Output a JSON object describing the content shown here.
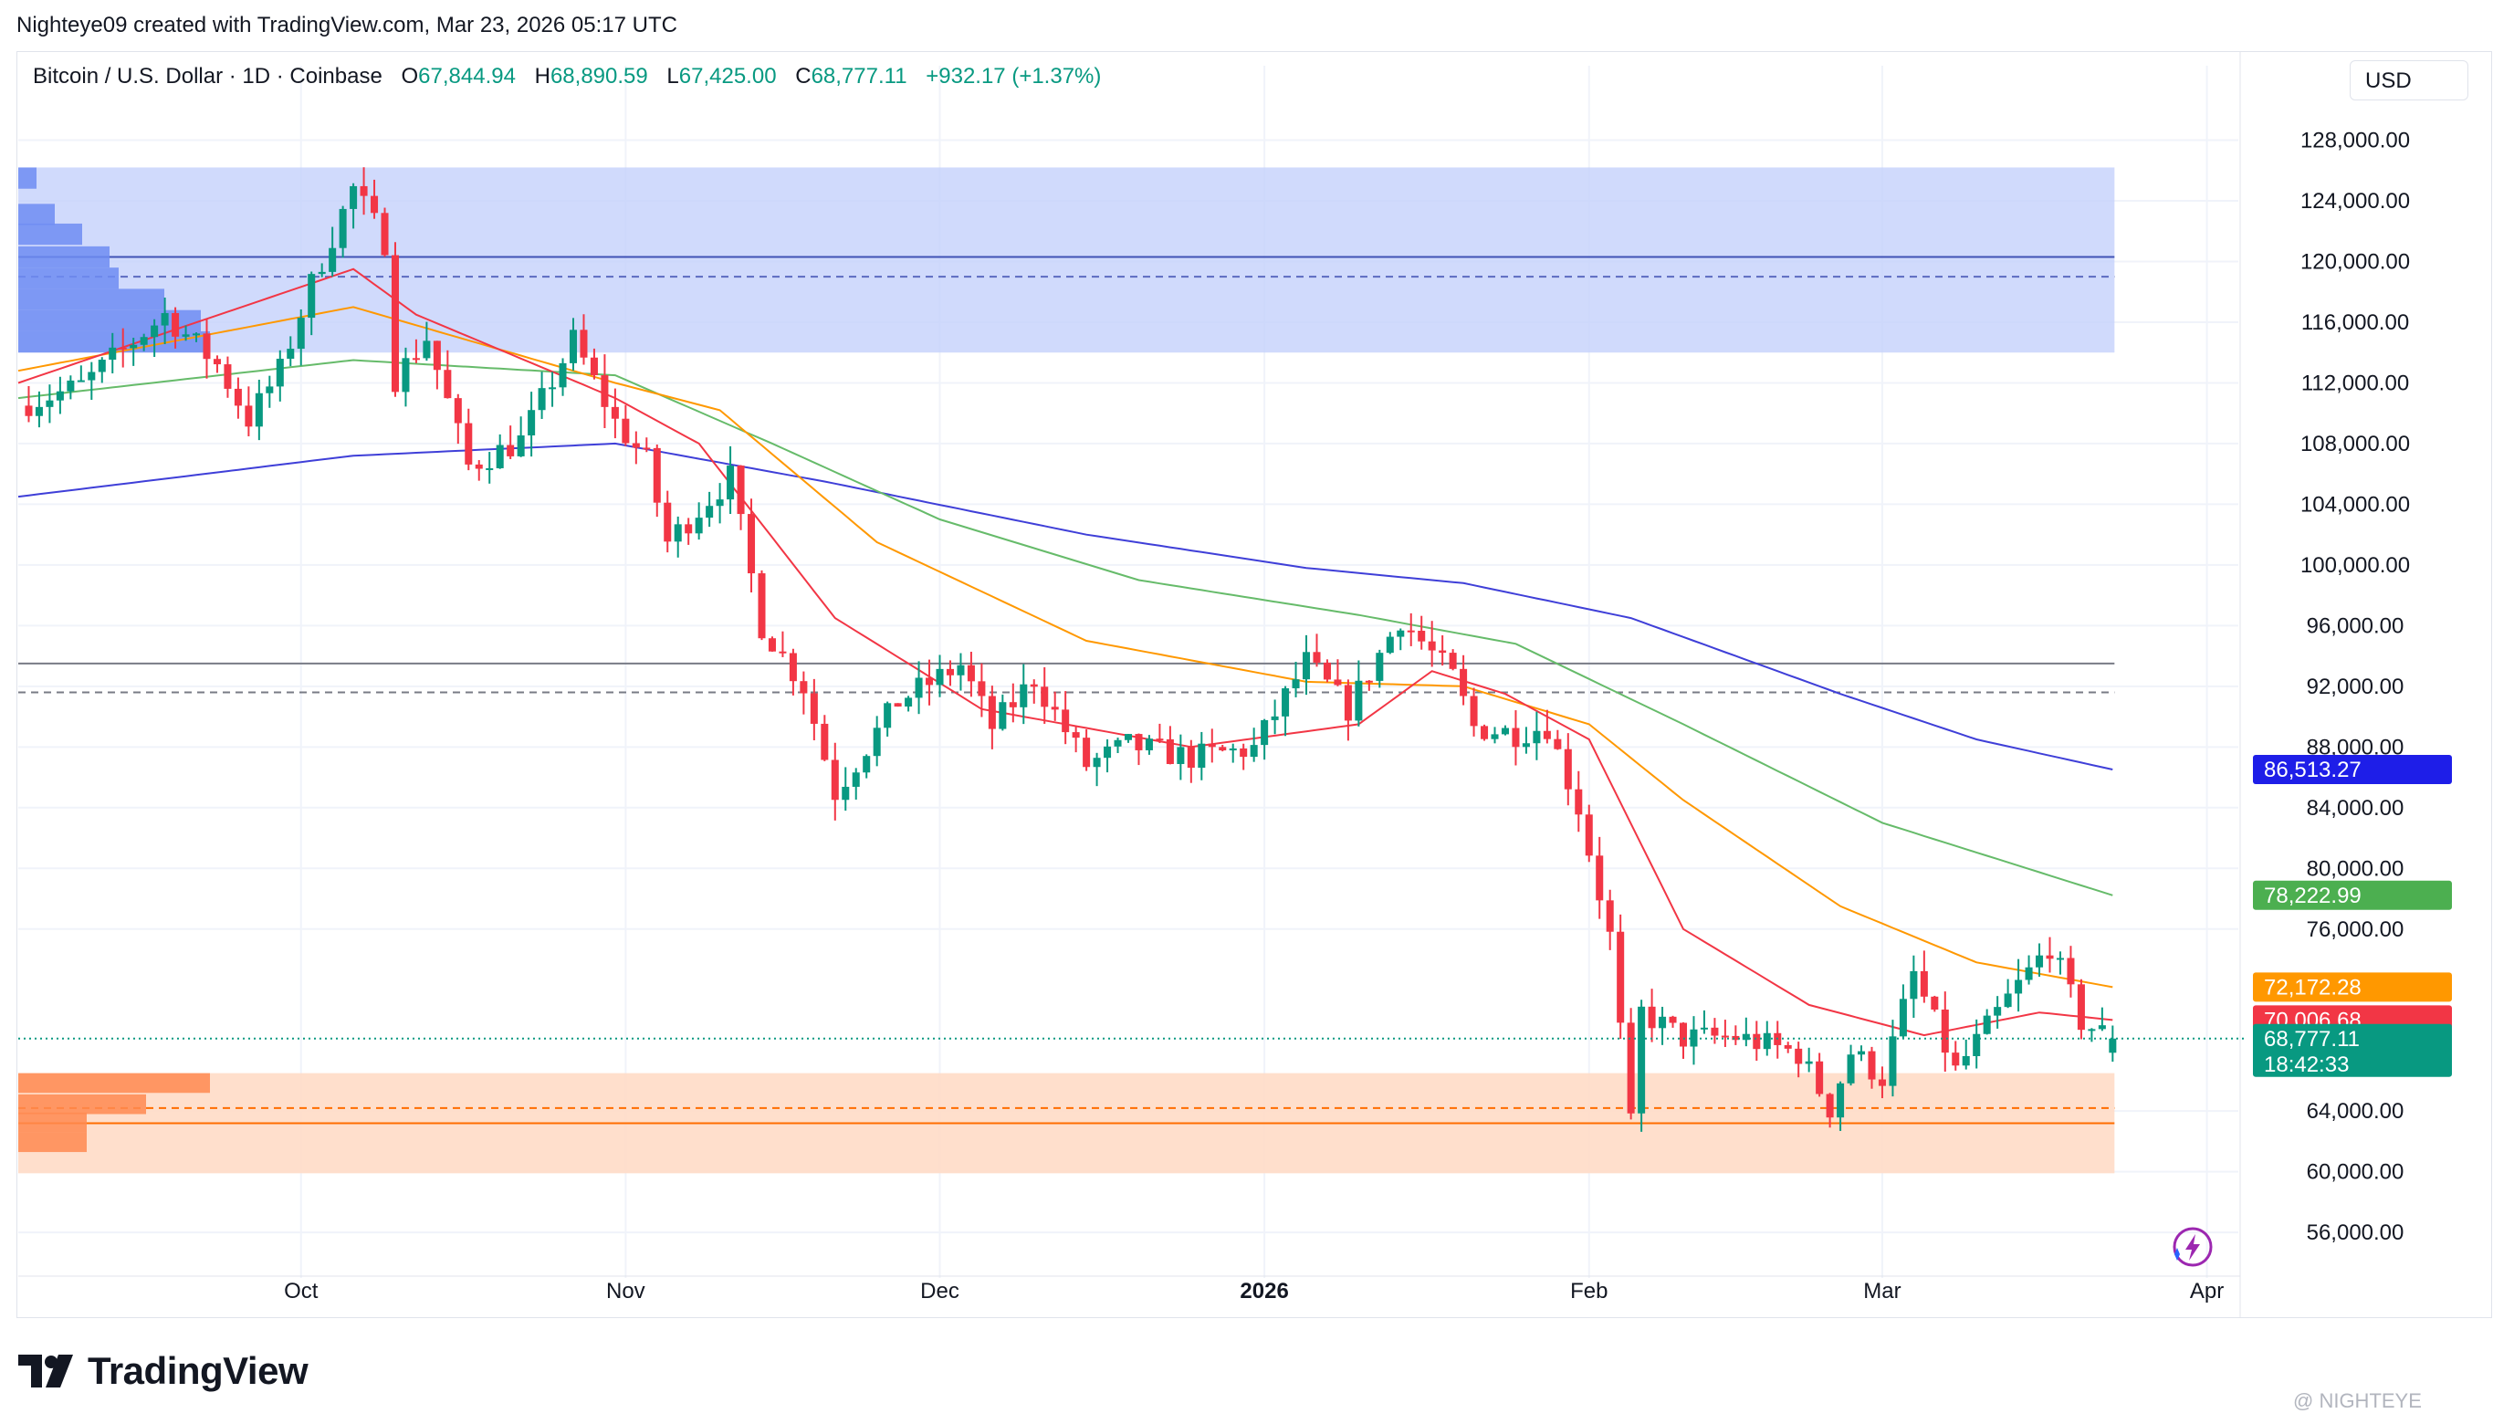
{
  "header": {
    "author": "Nighteye09",
    "created_text": "created with TradingView.com,",
    "date": "Mar 23, 2026 05:17 UTC"
  },
  "legend": {
    "symbol": "Bitcoin / U.S. Dollar · 1D · Coinbase",
    "open_label": "O",
    "open": "67,844.94",
    "high_label": "H",
    "high": "68,890.59",
    "low_label": "L",
    "low": "67,425.00",
    "close_label": "C",
    "close": "68,777.11",
    "change": "+932.17 (+1.37%)"
  },
  "currency_button": "USD",
  "brand": {
    "name": "TradingView"
  },
  "watermark": "@ NIGHTEYE",
  "colors": {
    "up": "#089981",
    "down": "#f23645",
    "ma_red": "#f23645",
    "ma_orange": "#ff9800",
    "ma_green": "#66bb6a",
    "ma_blue": "#3f3fd8",
    "upper_zone": "#c3d0fb",
    "lower_zone": "#ffdcc7"
  },
  "chart_data": {
    "type": "candlestick",
    "y_axis": {
      "ticks": [
        "128,000.00",
        "124,000.00",
        "120,000.00",
        "116,000.00",
        "112,000.00",
        "108,000.00",
        "104,000.00",
        "100,000.00",
        "96,000.00",
        "92,000.00",
        "88,000.00",
        "84,000.00",
        "80,000.00",
        "76,000.00",
        "64,000.00",
        "60,000.00",
        "56,000.00"
      ],
      "tick_values": [
        128000,
        124000,
        120000,
        116000,
        112000,
        108000,
        104000,
        100000,
        96000,
        92000,
        88000,
        84000,
        80000,
        76000,
        64000,
        60000,
        56000
      ],
      "range": [
        53000,
        130500
      ]
    },
    "x_axis": {
      "ticks": [
        "Oct",
        "Nov",
        "Dec",
        "2026",
        "Feb",
        "Mar",
        "Apr"
      ],
      "tick_dates": [
        "2025-10-01",
        "2025-11-01",
        "2025-12-01",
        "2026-01-01",
        "2026-02-01",
        "2026-03-01",
        "2026-04-01"
      ],
      "range": [
        "2025-09-04",
        "2026-04-04"
      ]
    },
    "price_labels": [
      {
        "text": "86,513.27",
        "value": 86513.27,
        "color": "#1e1ee8",
        "series": "ma_blue"
      },
      {
        "text": "78,222.99",
        "value": 78222.99,
        "color": "#4caf50",
        "series": "ma_green"
      },
      {
        "text": "72,172.28",
        "value": 72172.28,
        "color": "#ff9800",
        "series": "ma_orange"
      },
      {
        "text": "70,006.68",
        "value": 70006.68,
        "color": "#f23645",
        "series": "ma_red"
      },
      {
        "text": "68,777.11",
        "value": 68777.11,
        "color": "#089981",
        "series": "last"
      }
    ],
    "countdown": "18:42:33",
    "zones": [
      {
        "from": 114000,
        "to": 126200,
        "mid": 119000,
        "line": 120300,
        "color": "#c3d0fb"
      },
      {
        "from": 59900,
        "to": 66500,
        "mid": 64200,
        "line": 63200,
        "color": "#ffdcc7"
      }
    ],
    "level_lines": [
      {
        "solid": 93500,
        "dashed": 91600
      }
    ],
    "last_price": 68777.11,
    "keypoints": [
      [
        "2025-09-04",
        110500
      ],
      [
        "2025-09-10",
        111800
      ],
      [
        "2025-09-18",
        116500
      ],
      [
        "2025-09-23",
        113200
      ],
      [
        "2025-09-26",
        109600
      ],
      [
        "2025-09-29",
        112800
      ],
      [
        "2025-10-02",
        118500
      ],
      [
        "2025-10-06",
        124800
      ],
      [
        "2025-10-09",
        121300
      ],
      [
        "2025-10-10",
        112300
      ],
      [
        "2025-10-13",
        115000
      ],
      [
        "2025-10-17",
        106500
      ],
      [
        "2025-10-22",
        108200
      ],
      [
        "2025-10-27",
        114800
      ],
      [
        "2025-10-31",
        109400
      ],
      [
        "2025-11-03",
        106900
      ],
      [
        "2025-11-05",
        101500
      ],
      [
        "2025-11-11",
        105800
      ],
      [
        "2025-11-14",
        96000
      ],
      [
        "2025-11-18",
        92000
      ],
      [
        "2025-11-21",
        85000
      ],
      [
        "2025-11-24",
        88000
      ],
      [
        "2025-11-27",
        91000
      ],
      [
        "2025-12-03",
        93400
      ],
      [
        "2025-12-06",
        89300
      ],
      [
        "2025-12-10",
        92500
      ],
      [
        "2025-12-15",
        86800
      ],
      [
        "2025-12-19",
        88100
      ],
      [
        "2025-12-25",
        87300
      ],
      [
        "2025-12-31",
        87900
      ],
      [
        "2026-01-05",
        93600
      ],
      [
        "2026-01-09",
        90500
      ],
      [
        "2026-01-14",
        96500
      ],
      [
        "2026-01-19",
        92600
      ],
      [
        "2026-01-21",
        89300
      ],
      [
        "2026-01-25",
        88900
      ],
      [
        "2026-01-28",
        89400
      ],
      [
        "2026-01-31",
        84000
      ],
      [
        "2026-02-03",
        75500
      ],
      [
        "2026-02-05",
        63000
      ],
      [
        "2026-02-06",
        70500
      ],
      [
        "2026-02-10",
        68800
      ],
      [
        "2026-02-15",
        68900
      ],
      [
        "2026-02-21",
        67800
      ],
      [
        "2026-02-24",
        64200
      ],
      [
        "2026-02-26",
        67900
      ],
      [
        "2026-03-01",
        66200
      ],
      [
        "2026-03-04",
        73000
      ],
      [
        "2026-03-08",
        66600
      ],
      [
        "2026-03-13",
        71400
      ],
      [
        "2026-03-17",
        74900
      ],
      [
        "2026-03-20",
        69900
      ],
      [
        "2026-03-23",
        68777
      ]
    ],
    "ma_red_points": [
      [
        "2025-09-04",
        112000
      ],
      [
        "2025-10-06",
        119500
      ],
      [
        "2025-10-12",
        116500
      ],
      [
        "2025-10-31",
        111000
      ],
      [
        "2025-11-08",
        108000
      ],
      [
        "2025-11-21",
        96500
      ],
      [
        "2025-12-05",
        90500
      ],
      [
        "2025-12-25",
        88000
      ],
      [
        "2026-01-10",
        89500
      ],
      [
        "2026-01-17",
        93000
      ],
      [
        "2026-01-24",
        91500
      ],
      [
        "2026-02-01",
        88500
      ],
      [
        "2026-02-10",
        76000
      ],
      [
        "2026-02-22",
        71000
      ],
      [
        "2026-03-05",
        69000
      ],
      [
        "2026-03-16",
        70500
      ],
      [
        "2026-03-23",
        70006.68
      ]
    ],
    "ma_orange_points": [
      [
        "2025-09-04",
        112800
      ],
      [
        "2025-10-06",
        117000
      ],
      [
        "2025-10-31",
        112000
      ],
      [
        "2025-11-10",
        110200
      ],
      [
        "2025-11-25",
        101500
      ],
      [
        "2025-12-15",
        95000
      ],
      [
        "2026-01-05",
        92300
      ],
      [
        "2026-01-20",
        92000
      ],
      [
        "2026-02-01",
        89500
      ],
      [
        "2026-02-10",
        84500
      ],
      [
        "2026-02-25",
        77500
      ],
      [
        "2026-03-10",
        73800
      ],
      [
        "2026-03-23",
        72172.28
      ]
    ],
    "ma_green_points": [
      [
        "2025-09-04",
        111000
      ],
      [
        "2025-10-06",
        113500
      ],
      [
        "2025-10-31",
        112500
      ],
      [
        "2025-11-15",
        108000
      ],
      [
        "2025-12-01",
        103000
      ],
      [
        "2025-12-20",
        99000
      ],
      [
        "2026-01-10",
        96700
      ],
      [
        "2026-01-25",
        94800
      ],
      [
        "2026-02-10",
        89500
      ],
      [
        "2026-03-01",
        83000
      ],
      [
        "2026-03-23",
        78222.99
      ]
    ],
    "ma_blue_points": [
      [
        "2025-09-04",
        104500
      ],
      [
        "2025-10-06",
        107200
      ],
      [
        "2025-10-31",
        108000
      ],
      [
        "2025-11-20",
        105500
      ],
      [
        "2025-12-15",
        102000
      ],
      [
        "2026-01-05",
        99800
      ],
      [
        "2026-01-20",
        98800
      ],
      [
        "2026-02-05",
        96500
      ],
      [
        "2026-02-25",
        91500
      ],
      [
        "2026-03-10",
        88500
      ],
      [
        "2026-03-23",
        86513.27
      ]
    ]
  }
}
